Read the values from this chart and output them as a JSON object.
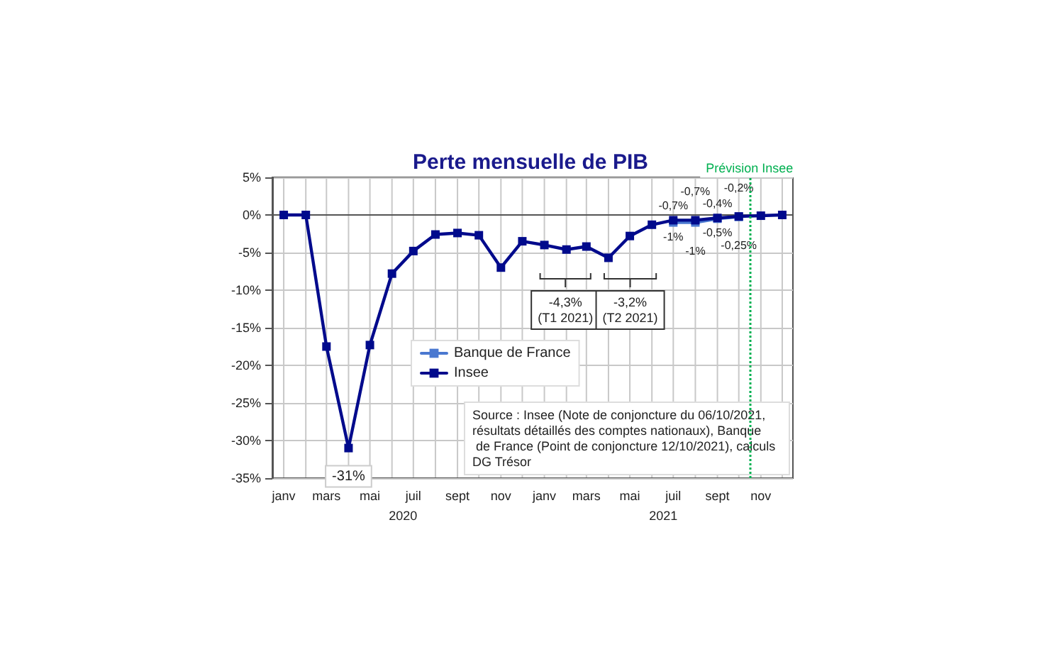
{
  "chart_data": {
    "type": "line",
    "title": "Perte mensuelle de PIB",
    "x": [
      "2020-01",
      "2020-02",
      "2020-03",
      "2020-04",
      "2020-05",
      "2020-06",
      "2020-07",
      "2020-08",
      "2020-09",
      "2020-10",
      "2020-11",
      "2020-12",
      "2021-01",
      "2021-02",
      "2021-03",
      "2021-04",
      "2021-05",
      "2021-06",
      "2021-07",
      "2021-08",
      "2021-09",
      "2021-10",
      "2021-11",
      "2021-12"
    ],
    "xlim": [
      "2019-12-16",
      "2021-12-16"
    ],
    "xticks": [
      {
        "value": "2020-01",
        "label": "janv"
      },
      {
        "value": "2020-02",
        "label": null
      },
      {
        "value": "2020-03",
        "label": "mars"
      },
      {
        "value": "2020-04",
        "label": null
      },
      {
        "value": "2020-05",
        "label": "mai"
      },
      {
        "value": "2020-06",
        "label": null
      },
      {
        "value": "2020-07",
        "label": "juil"
      },
      {
        "value": "2020-08",
        "label": null
      },
      {
        "value": "2020-09",
        "label": "sept"
      },
      {
        "value": "2020-10",
        "label": null
      },
      {
        "value": "2020-11",
        "label": "nov"
      },
      {
        "value": "2020-12",
        "label": null
      },
      {
        "value": "2021-01",
        "label": "janv"
      },
      {
        "value": "2021-02",
        "label": null
      },
      {
        "value": "2021-03",
        "label": "mars"
      },
      {
        "value": "2021-04",
        "label": null
      },
      {
        "value": "2021-05",
        "label": "mai"
      },
      {
        "value": "2021-06",
        "label": null
      },
      {
        "value": "2021-07",
        "label": "juil"
      },
      {
        "value": "2021-08",
        "label": null
      },
      {
        "value": "2021-09",
        "label": "sept"
      },
      {
        "value": "2021-10",
        "label": null
      },
      {
        "value": "2021-11",
        "label": "nov"
      },
      {
        "value": "2021-12",
        "label": null
      }
    ],
    "series": [
      {
        "name": "Banque de France",
        "color": "#4a78d0",
        "values": [
          null,
          null,
          null,
          null,
          null,
          null,
          null,
          null,
          null,
          null,
          null,
          null,
          null,
          null,
          null,
          null,
          null,
          null,
          -1,
          -1,
          -0.5,
          -0.25,
          null,
          null
        ],
        "value_labels": [
          null,
          null,
          null,
          null,
          null,
          null,
          null,
          null,
          null,
          null,
          null,
          null,
          null,
          null,
          null,
          null,
          null,
          null,
          "-1%",
          "-1%",
          "-0,5%",
          "-0,25%",
          null,
          null
        ]
      },
      {
        "name": "Insee",
        "color": "#000a8c",
        "values": [
          0,
          0,
          -17.5,
          -31,
          -17.3,
          -7.8,
          -4.8,
          -2.6,
          -2.4,
          -2.7,
          -7,
          -3.5,
          -4,
          -4.6,
          -4.2,
          -5.7,
          -2.8,
          -1.3,
          -0.7,
          -0.7,
          -0.4,
          -0.2,
          -0.1,
          0
        ],
        "value_labels": [
          null,
          null,
          null,
          "-31%",
          null,
          null,
          null,
          null,
          null,
          null,
          null,
          null,
          null,
          null,
          null,
          null,
          null,
          null,
          "-0,7%",
          "-0,7%",
          "-0,4%",
          "-0,2%",
          null,
          null
        ]
      }
    ],
    "ylim": [
      -35,
      5
    ],
    "yticks": [
      {
        "value": 5,
        "label": "5%"
      },
      {
        "value": 0,
        "label": "0%"
      },
      {
        "value": -5,
        "label": "-5%"
      },
      {
        "value": -10,
        "label": "-10%"
      },
      {
        "value": -15,
        "label": "-15%"
      },
      {
        "value": -20,
        "label": "-20%"
      },
      {
        "value": -25,
        "label": "-25%"
      },
      {
        "value": -30,
        "label": "-30%"
      },
      {
        "value": -35,
        "label": "-35%"
      }
    ],
    "grid": true,
    "legend": "center",
    "marker": "square",
    "line_style": "solid",
    "ref_lines": [
      {
        "axis": "x",
        "value": "2021-10-16",
        "label": "Prévision Insee",
        "color": "#00b050",
        "line_style": "dotted"
      }
    ],
    "annotations": [
      "-4,3%\n(T1 2021)",
      "-3,2%\n(T2 2021)",
      "Source : Insee (Note de conjoncture du 06/10/2021, résultats détaillés des comptes nationaux), Banque de France (Point de conjoncture 12/10/2021), calculs DG Trésor",
      "2020",
      "2021"
    ]
  }
}
